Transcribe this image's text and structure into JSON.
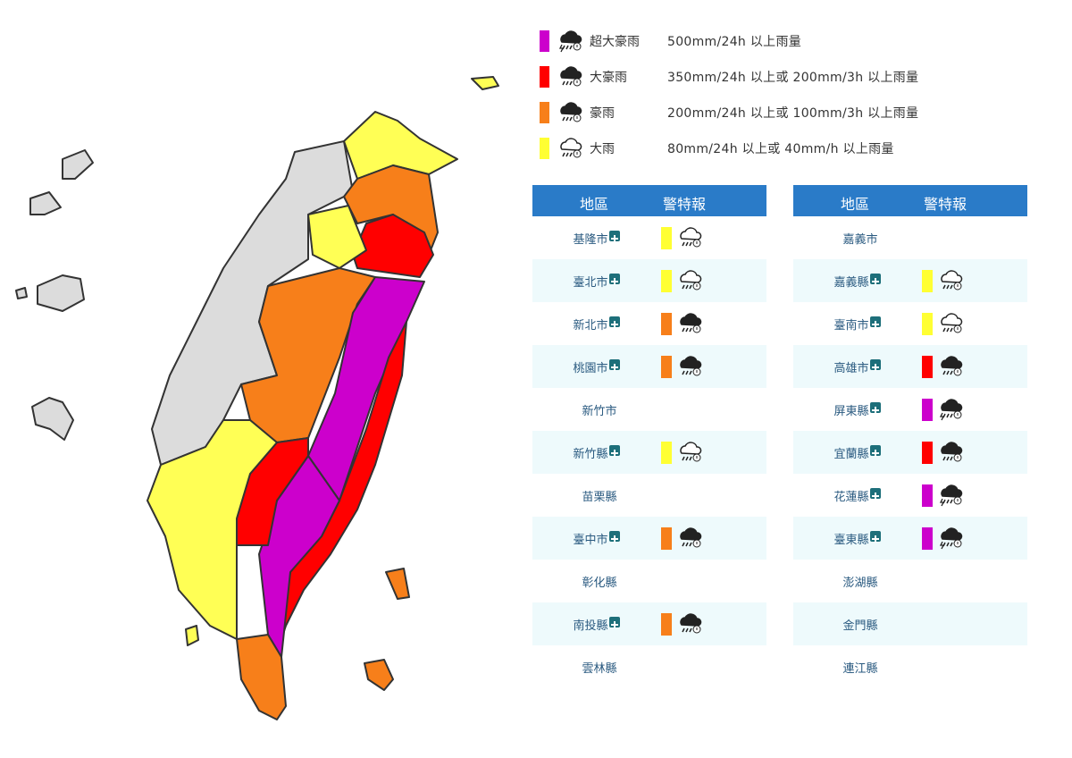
{
  "legend": [
    {
      "label": "超大豪雨",
      "description": "500mm/24h 以上雨量",
      "color": "#cc00cc"
    },
    {
      "label": "大豪雨",
      "description": "350mm/24h 以上或 200mm/3h 以上雨量",
      "color": "#ff0000"
    },
    {
      "label": "豪雨",
      "description": "200mm/24h 以上或 100mm/3h 以上雨量",
      "color": "#f77f1a"
    },
    {
      "label": "大雨",
      "description": "80mm/24h 以上或 40mm/h 以上雨量",
      "color": "#ffff33"
    }
  ],
  "tables": [
    {
      "header": [
        "地區",
        "警特報"
      ],
      "rows": [
        {
          "region": "基隆市",
          "warning": "大雨"
        },
        {
          "region": "臺北市",
          "warning": "大雨"
        },
        {
          "region": "新北市",
          "warning": "豪雨"
        },
        {
          "region": "桃園市",
          "warning": "豪雨"
        },
        {
          "region": "新竹市",
          "warning": null
        },
        {
          "region": "新竹縣",
          "warning": "大雨"
        },
        {
          "region": "苗栗縣",
          "warning": null
        },
        {
          "region": "臺中市",
          "warning": "豪雨"
        },
        {
          "region": "彰化縣",
          "warning": null
        },
        {
          "region": "南投縣",
          "warning": "豪雨"
        },
        {
          "region": "雲林縣",
          "warning": null
        }
      ]
    },
    {
      "header": [
        "地區",
        "警特報"
      ],
      "rows": [
        {
          "region": "嘉義市",
          "warning": null
        },
        {
          "region": "嘉義縣",
          "warning": "大雨"
        },
        {
          "region": "臺南市",
          "warning": "大雨"
        },
        {
          "region": "高雄市",
          "warning": "大豪雨"
        },
        {
          "region": "屏東縣",
          "warning": "超大豪雨"
        },
        {
          "region": "宜蘭縣",
          "warning": "大豪雨"
        },
        {
          "region": "花蓮縣",
          "warning": "超大豪雨"
        },
        {
          "region": "臺東縣",
          "warning": "超大豪雨"
        },
        {
          "region": "澎湖縣",
          "warning": null
        },
        {
          "region": "金門縣",
          "warning": null
        },
        {
          "region": "連江縣",
          "warning": null
        }
      ]
    }
  ]
}
